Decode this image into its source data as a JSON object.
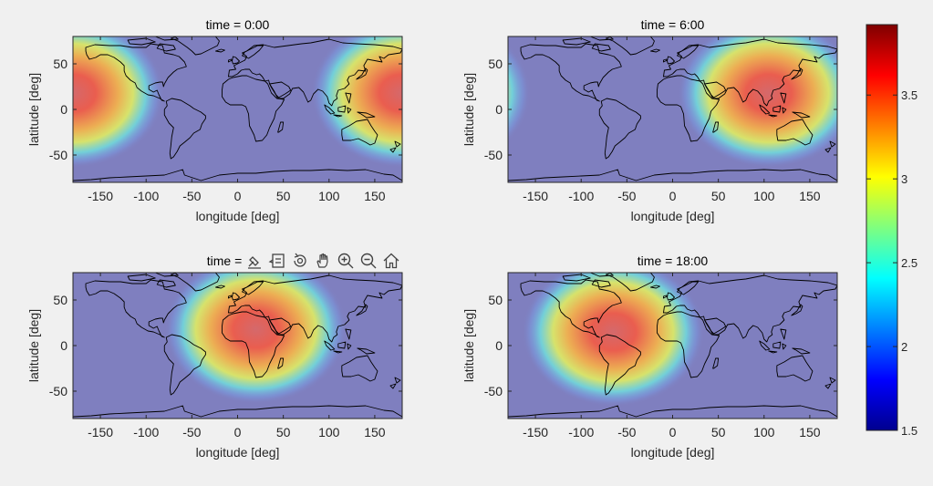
{
  "window": {
    "background": "#f0f0f0"
  },
  "colors": {
    "ocean": "#7f7fbf",
    "coast": "#000000",
    "axis": "#262626"
  },
  "toolbar": {
    "icons": [
      "brush-icon",
      "data-tips-icon",
      "rotate-3d-icon",
      "pan-hand-icon",
      "zoom-in-icon",
      "zoom-out-icon",
      "home-icon"
    ]
  },
  "chart_data": [
    {
      "type": "heatmap",
      "title": "time = 0:00",
      "xlabel": "longitude [deg]",
      "ylabel": "latitude [deg]",
      "xlim": [
        -180,
        180
      ],
      "ylim": [
        -80,
        80
      ],
      "xticks": [
        -150,
        -100,
        -50,
        0,
        50,
        100,
        150
      ],
      "yticks": [
        -50,
        0,
        50
      ],
      "peak": {
        "lon": 180,
        "lat": 18,
        "value": 3.9
      },
      "visible": [
        "toolbar"
      ]
    },
    {
      "type": "heatmap",
      "title": "time = 6:00",
      "xlabel": "longitude [deg]",
      "ylabel": "latitude [deg]",
      "xlim": [
        -180,
        180
      ],
      "ylim": [
        -80,
        80
      ],
      "xticks": [
        -150,
        -100,
        -50,
        0,
        50,
        100,
        150
      ],
      "yticks": [
        -50,
        0,
        50
      ],
      "peak": {
        "lon": 105,
        "lat": 18,
        "value": 3.9
      }
    },
    {
      "type": "heatmap",
      "title": "time = ",
      "xlabel": "longitude [deg]",
      "ylabel": "latitude [deg]",
      "xlim": [
        -180,
        180
      ],
      "ylim": [
        -80,
        80
      ],
      "xticks": [
        -150,
        -100,
        -50,
        0,
        50,
        100,
        150
      ],
      "yticks": [
        -50,
        0,
        50
      ],
      "peak": {
        "lon": 20,
        "lat": 18,
        "value": 3.9
      }
    },
    {
      "type": "heatmap",
      "title": "time = 18:00",
      "xlabel": "longitude [deg]",
      "ylabel": "latitude [deg]",
      "xlim": [
        -180,
        180
      ],
      "ylim": [
        -80,
        80
      ],
      "xticks": [
        -150,
        -100,
        -50,
        0,
        50,
        100,
        150
      ],
      "yticks": [
        -50,
        0,
        50
      ],
      "peak": {
        "lon": -65,
        "lat": 15,
        "value": 3.9
      }
    }
  ],
  "colorbar": {
    "colormap": "jet",
    "range": [
      1.5,
      3.92
    ],
    "ticks": [
      1.5,
      2,
      2.5,
      3,
      3.5
    ],
    "tick_labels": [
      "1.5",
      "2",
      "2.5",
      "3",
      "3.5"
    ]
  }
}
